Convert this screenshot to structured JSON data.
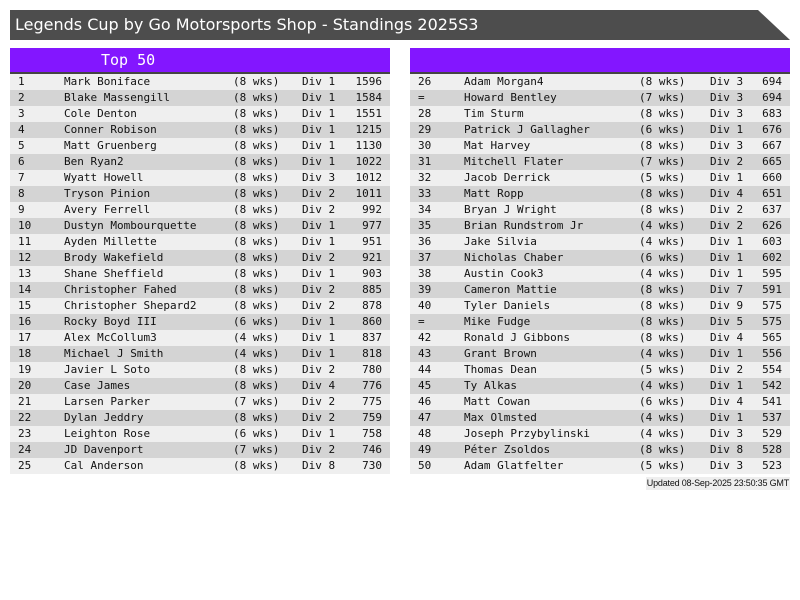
{
  "title": "Legends Cup by Go Motorsports Shop - Standings 2025S3",
  "colors": {
    "title_bg": "#4d4d4d",
    "header_bg": "#8316ff",
    "row_odd": "#efefef",
    "row_even": "#d4d4d4"
  },
  "left": {
    "header": "Top 50",
    "rows": [
      [
        "1",
        "Mark Boniface",
        "(8 wks)",
        "Div 1",
        "1596"
      ],
      [
        "2",
        "Blake Massengill",
        "(8 wks)",
        "Div 1",
        "1584"
      ],
      [
        "3",
        "Cole Denton",
        "(8 wks)",
        "Div 1",
        "1551"
      ],
      [
        "4",
        "Conner Robison",
        "(8 wks)",
        "Div 1",
        "1215"
      ],
      [
        "5",
        "Matt Gruenberg",
        "(8 wks)",
        "Div 1",
        "1130"
      ],
      [
        "6",
        "Ben Ryan2",
        "(8 wks)",
        "Div 1",
        "1022"
      ],
      [
        "7",
        "Wyatt Howell",
        "(8 wks)",
        "Div 3",
        "1012"
      ],
      [
        "8",
        "Tryson Pinion",
        "(8 wks)",
        "Div 2",
        "1011"
      ],
      [
        "9",
        "Avery Ferrell",
        "(8 wks)",
        "Div 2",
        "992"
      ],
      [
        "10",
        "Dustyn Mombourquette",
        "(8 wks)",
        "Div 1",
        "977"
      ],
      [
        "11",
        "Ayden Millette",
        "(8 wks)",
        "Div 1",
        "951"
      ],
      [
        "12",
        "Brody Wakefield",
        "(8 wks)",
        "Div 2",
        "921"
      ],
      [
        "13",
        "Shane Sheffield",
        "(8 wks)",
        "Div 1",
        "903"
      ],
      [
        "14",
        "Christopher Fahed",
        "(8 wks)",
        "Div 2",
        "885"
      ],
      [
        "15",
        "Christopher Shepard2",
        "(8 wks)",
        "Div 2",
        "878"
      ],
      [
        "16",
        "Rocky Boyd III",
        "(6 wks)",
        "Div 1",
        "860"
      ],
      [
        "17",
        "Alex McCollum3",
        "(4 wks)",
        "Div 1",
        "837"
      ],
      [
        "18",
        "Michael J Smith",
        "(4 wks)",
        "Div 1",
        "818"
      ],
      [
        "19",
        "Javier L Soto",
        "(8 wks)",
        "Div 2",
        "780"
      ],
      [
        "20",
        "Case James",
        "(8 wks)",
        "Div 4",
        "776"
      ],
      [
        "21",
        "Larsen Parker",
        "(7 wks)",
        "Div 2",
        "775"
      ],
      [
        "22",
        "Dylan Jeddry",
        "(8 wks)",
        "Div 2",
        "759"
      ],
      [
        "23",
        "Leighton Rose",
        "(6 wks)",
        "Div 1",
        "758"
      ],
      [
        "24",
        "JD Davenport",
        "(7 wks)",
        "Div 2",
        "746"
      ],
      [
        "25",
        "Cal Anderson",
        "(8 wks)",
        "Div 8",
        "730"
      ]
    ]
  },
  "right": {
    "header": "",
    "rows": [
      [
        "26",
        "Adam Morgan4",
        "(8 wks)",
        "Div 3",
        "694"
      ],
      [
        "=",
        "Howard Bentley",
        "(7 wks)",
        "Div 3",
        "694"
      ],
      [
        "28",
        "Tim Sturm",
        "(8 wks)",
        "Div 3",
        "683"
      ],
      [
        "29",
        "Patrick J Gallagher",
        "(6 wks)",
        "Div 1",
        "676"
      ],
      [
        "30",
        "Mat Harvey",
        "(8 wks)",
        "Div 3",
        "667"
      ],
      [
        "31",
        "Mitchell Flater",
        "(7 wks)",
        "Div 2",
        "665"
      ],
      [
        "32",
        "Jacob Derrick",
        "(5 wks)",
        "Div 1",
        "660"
      ],
      [
        "33",
        "Matt Ropp",
        "(8 wks)",
        "Div 4",
        "651"
      ],
      [
        "34",
        "Bryan J Wright",
        "(8 wks)",
        "Div 2",
        "637"
      ],
      [
        "35",
        "Brian Rundstrom Jr",
        "(4 wks)",
        "Div 2",
        "626"
      ],
      [
        "36",
        "Jake Silvia",
        "(4 wks)",
        "Div 1",
        "603"
      ],
      [
        "37",
        "Nicholas Chaber",
        "(6 wks)",
        "Div 1",
        "602"
      ],
      [
        "38",
        "Austin Cook3",
        "(4 wks)",
        "Div 1",
        "595"
      ],
      [
        "39",
        "Cameron Mattie",
        "(8 wks)",
        "Div 7",
        "591"
      ],
      [
        "40",
        "Tyler Daniels",
        "(8 wks)",
        "Div 9",
        "575"
      ],
      [
        "=",
        "Mike Fudge",
        "(8 wks)",
        "Div 5",
        "575"
      ],
      [
        "42",
        "Ronald J Gibbons",
        "(8 wks)",
        "Div 4",
        "565"
      ],
      [
        "43",
        "Grant Brown",
        "(4 wks)",
        "Div 1",
        "556"
      ],
      [
        "44",
        "Thomas Dean",
        "(5 wks)",
        "Div 2",
        "554"
      ],
      [
        "45",
        "Ty Alkas",
        "(4 wks)",
        "Div 1",
        "542"
      ],
      [
        "46",
        "Matt Cowan",
        "(6 wks)",
        "Div 4",
        "541"
      ],
      [
        "47",
        "Max Olmsted",
        "(4 wks)",
        "Div 1",
        "537"
      ],
      [
        "48",
        "Joseph Przybylinski",
        "(4 wks)",
        "Div 3",
        "529"
      ],
      [
        "49",
        "Péter Zsoldos",
        "(8 wks)",
        "Div 8",
        "528"
      ],
      [
        "50",
        "Adam Glatfelter",
        "(5 wks)",
        "Div 3",
        "523"
      ]
    ]
  },
  "footer": "Updated 08-Sep-2025 23:50:35 GMT"
}
